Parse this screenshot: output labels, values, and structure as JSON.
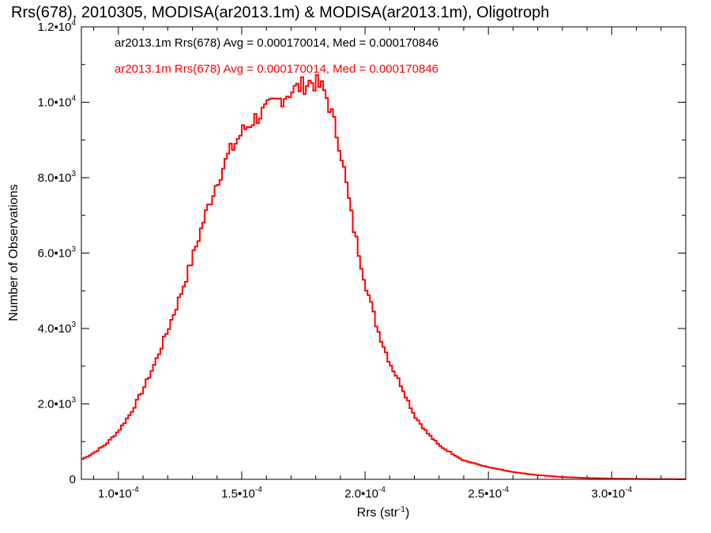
{
  "chart_data": {
    "type": "histogram",
    "title": "Rrs(678), 2010305, MODISA(ar2013.1m) & MODISA(ar2013.1m), Oligotroph",
    "xlabel_base": "Rrs (str",
    "xlabel_sup": "-1",
    "xlabel_end": ")",
    "ylabel": "Number of Observations",
    "xlim": [
      8.5e-05,
      0.00033
    ],
    "ylim": [
      0,
      12000
    ],
    "x_ticks": [
      {
        "value": 0.0001,
        "mant": "1.0•10",
        "exp": "-4"
      },
      {
        "value": 0.00015,
        "mant": "1.5•10",
        "exp": "-4"
      },
      {
        "value": 0.0002,
        "mant": "2.0•10",
        "exp": "-4"
      },
      {
        "value": 0.00025,
        "mant": "2.5•10",
        "exp": "-4"
      },
      {
        "value": 0.0003,
        "mant": "3.0•10",
        "exp": "-4"
      }
    ],
    "y_ticks": [
      {
        "value": 0,
        "mant": "0",
        "exp": ""
      },
      {
        "value": 2000,
        "mant": "2.0•10",
        "exp": "3"
      },
      {
        "value": 4000,
        "mant": "4.0•10",
        "exp": "3"
      },
      {
        "value": 6000,
        "mant": "6.0•10",
        "exp": "3"
      },
      {
        "value": 8000,
        "mant": "8.0•10",
        "exp": "3"
      },
      {
        "value": 10000,
        "mant": "1.0•10",
        "exp": "4"
      },
      {
        "value": 12000,
        "mant": "1.2•10",
        "exp": "4"
      }
    ],
    "legend": [
      {
        "text": "ar2013.1m Rrs(678) Avg = 0.000170014, Med = 0.000170846",
        "color": "#000000"
      },
      {
        "text": "ar2013.1m Rrs(678) Avg = 0.000170014, Med = 0.000170846",
        "color": "#ff0000"
      }
    ],
    "series": [
      {
        "color": "#ff0000",
        "bin_width": 1e-06,
        "points": [
          [
            8.5e-05,
            520
          ],
          [
            9e-05,
            700
          ],
          [
            9.5e-05,
            930
          ],
          [
            0.0001,
            1280
          ],
          [
            0.000105,
            1750
          ],
          [
            0.00011,
            2380
          ],
          [
            0.000115,
            3100
          ],
          [
            0.00012,
            3950
          ],
          [
            0.000125,
            4850
          ],
          [
            0.00013,
            5850
          ],
          [
            0.000135,
            6950
          ],
          [
            0.00014,
            7900
          ],
          [
            0.000145,
            8650
          ],
          [
            0.00015,
            9200
          ],
          [
            0.000155,
            9550
          ],
          [
            0.00016,
            9800
          ],
          [
            0.000165,
            10050
          ],
          [
            0.00017,
            10300
          ],
          [
            0.000175,
            10450
          ],
          [
            0.000178,
            10550
          ],
          [
            0.00018,
            10500
          ],
          [
            0.000183,
            10350
          ],
          [
            0.000185,
            10050
          ],
          [
            0.00019,
            8800
          ],
          [
            0.000195,
            6800
          ],
          [
            0.0002,
            5250
          ],
          [
            0.000205,
            4000
          ],
          [
            0.00021,
            3100
          ],
          [
            0.000215,
            2450
          ],
          [
            0.00022,
            1700
          ],
          [
            0.000225,
            1250
          ],
          [
            0.00023,
            900
          ],
          [
            0.000235,
            700
          ],
          [
            0.00024,
            500
          ],
          [
            0.00025,
            320
          ],
          [
            0.00026,
            190
          ],
          [
            0.00027,
            110
          ],
          [
            0.00028,
            60
          ],
          [
            0.00029,
            35
          ],
          [
            0.0003,
            20
          ],
          [
            0.00031,
            10
          ],
          [
            0.00032,
            5
          ],
          [
            0.00033,
            2
          ]
        ]
      }
    ]
  }
}
